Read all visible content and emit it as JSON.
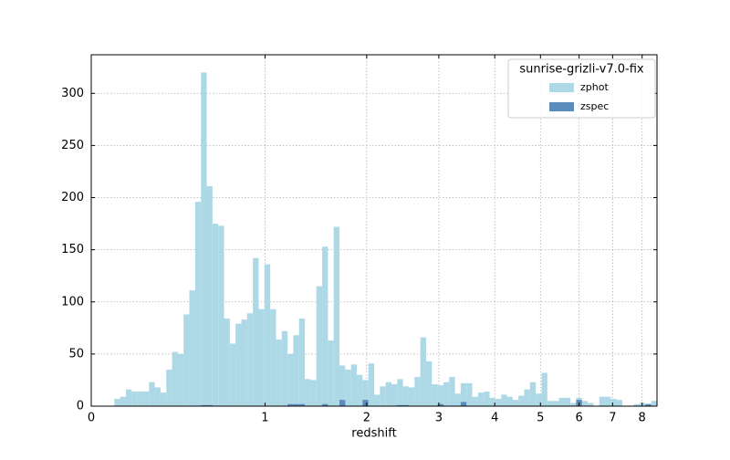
{
  "chart_data": {
    "type": "histogram",
    "xlabel": "redshift",
    "xscale": "log1p",
    "grid": true,
    "legend": "upper right",
    "legend_title": "sunrise-grizli-v7.0-fix",
    "bins": [
      0.0965,
      0.122,
      0.1482,
      0.1749,
      0.2023,
      0.2303,
      0.2589,
      0.2882,
      0.3183,
      0.349,
      0.3804,
      0.4125,
      0.4454,
      0.4791,
      0.5136,
      0.5488,
      0.5849,
      0.6218,
      0.6596,
      0.6982,
      0.7378,
      0.7783,
      0.8197,
      0.8621,
      0.9055,
      0.9498,
      0.9953,
      1.0417,
      1.0893,
      1.138,
      1.1878,
      1.2387,
      1.2909,
      1.3442,
      1.3988,
      1.4547,
      1.5119,
      1.5704,
      1.6303,
      1.6915,
      1.7542,
      1.8184,
      1.884,
      1.9512,
      2.02,
      2.0903,
      2.1623,
      2.2359,
      2.3113,
      2.3884,
      2.4674,
      2.5481,
      2.6308,
      2.7154,
      2.8019,
      2.8905,
      2.9811,
      3.0738,
      3.1687,
      3.2658,
      3.3652,
      3.4668,
      3.5709,
      3.6774,
      3.7863,
      3.8978,
      4.0119,
      4.1286,
      4.2481,
      4.3703,
      4.4954,
      4.6234,
      4.7544,
      4.8884,
      5.0256,
      5.166,
      5.3096,
      5.4565,
      5.6069,
      5.7608,
      5.9183,
      6.0795,
      6.2444,
      6.4131,
      6.5858,
      6.7625,
      6.9433,
      7.1283,
      7.3176,
      7.5114,
      7.7096,
      7.9125,
      8.1201,
      8.3325,
      8.5499
    ],
    "series": [
      {
        "name": "zphot",
        "color": "#add8e6",
        "values": [
          7,
          9,
          16,
          14,
          14,
          14,
          23,
          18,
          13,
          35,
          52,
          50,
          88,
          111,
          196,
          320,
          211,
          175,
          173,
          84,
          60,
          79,
          83,
          89,
          142,
          93,
          136,
          93,
          64,
          72,
          50,
          68,
          84,
          26,
          25,
          115,
          153,
          63,
          172,
          39,
          35,
          40,
          30,
          25,
          41,
          11,
          19,
          23,
          21,
          26,
          19,
          18,
          28,
          66,
          43,
          21,
          20,
          23,
          28,
          12,
          22,
          22,
          9,
          13,
          14,
          8,
          7,
          11,
          9,
          6,
          10,
          16,
          23,
          12,
          32,
          5,
          5,
          8,
          8,
          3,
          8,
          5,
          3,
          0,
          9,
          9,
          7,
          6,
          0,
          0,
          2,
          3,
          2,
          5
        ]
      },
      {
        "name": "zspec",
        "color": "#5b8cbb",
        "values": [
          0,
          0,
          0,
          0,
          0,
          0,
          0,
          0,
          0,
          0,
          0,
          0,
          0,
          0,
          0,
          1,
          1,
          0,
          0,
          0,
          0,
          0,
          0,
          0,
          0,
          0,
          0,
          0,
          0,
          0,
          2,
          2,
          2,
          0,
          0,
          0,
          2,
          0,
          0,
          6,
          0,
          0,
          0,
          6,
          0,
          0,
          0,
          0,
          0,
          1,
          1,
          0,
          0,
          0,
          0,
          0,
          2,
          0,
          0,
          0,
          4,
          0,
          0,
          0,
          0,
          0,
          0,
          0,
          0,
          0,
          0,
          0,
          0,
          0,
          0,
          0,
          0,
          0,
          0,
          0,
          6,
          0,
          0,
          0,
          0,
          0,
          0,
          0,
          0,
          0,
          0,
          0,
          2,
          0
        ]
      }
    ],
    "xlim": [
      0,
      8.55
    ],
    "xticks": [
      0,
      1,
      2,
      3,
      4,
      5,
      6,
      7,
      8
    ],
    "ylim": [
      0,
      337
    ],
    "yticks": [
      0,
      50,
      100,
      150,
      200,
      250,
      300
    ]
  }
}
